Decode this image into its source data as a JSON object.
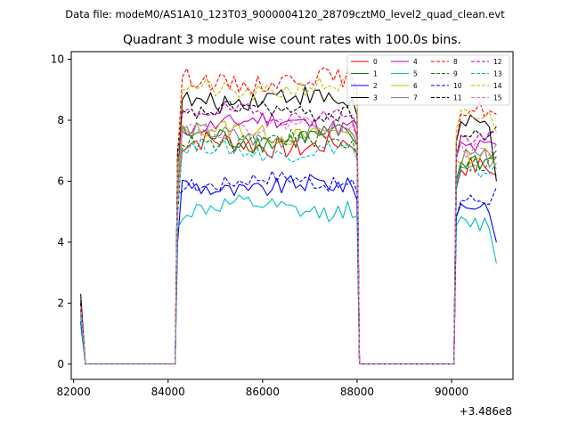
{
  "chart_data": {
    "type": "line",
    "suptitle": "Data file: modeM0/AS1A10_123T03_9000004120_28709cztM0_level2_quad_clean.evt",
    "title": "Quadrant 3 module wise count rates with 100.0s bins.",
    "xlabel": "",
    "ylabel": "",
    "x_offset_label": "+3.486e8",
    "xlim": [
      81950,
      91300
    ],
    "ylim": [
      -0.5,
      10.25
    ],
    "xticks": [
      82000,
      84000,
      86000,
      88000,
      90000
    ],
    "xtick_labels": [
      "82000",
      "84000",
      "86000",
      "88000",
      "90000"
    ],
    "yticks": [
      0,
      2,
      4,
      6,
      8,
      10
    ],
    "ytick_labels": [
      "0",
      "2",
      "4",
      "6",
      "8",
      "10"
    ],
    "legend_position": "top-right",
    "segments": [
      {
        "start": 82150,
        "end": 82250
      },
      {
        "start": 82250,
        "end": 84150
      },
      {
        "start": 84150,
        "end": 88050
      },
      {
        "start": 88050,
        "end": 90050
      },
      {
        "start": 90050,
        "end": 90950
      }
    ],
    "series": [
      {
        "name": "0",
        "color": "#ff0000",
        "dash": false,
        "start": 2.1,
        "level": 7.2,
        "noise": 0.35,
        "tail": 6.2
      },
      {
        "name": "1",
        "color": "#008000",
        "dash": false,
        "start": 1.9,
        "level": 7.4,
        "noise": 0.35,
        "tail": 7.0
      },
      {
        "name": "2",
        "color": "#0000ff",
        "dash": false,
        "start": 1.6,
        "level": 5.8,
        "noise": 0.3,
        "tail": 4.0
      },
      {
        "name": "3",
        "color": "#000000",
        "dash": false,
        "start": 2.3,
        "level": 8.7,
        "noise": 0.35,
        "tail": 6.0
      },
      {
        "name": "4",
        "color": "#bf00bf",
        "dash": false,
        "start": 1.8,
        "level": 7.9,
        "noise": 0.3,
        "tail": 7.2
      },
      {
        "name": "5",
        "color": "#00bfbf",
        "dash": false,
        "start": 1.3,
        "level": 5.1,
        "noise": 0.3,
        "tail": 3.3
      },
      {
        "name": "6",
        "color": "#bfbf00",
        "dash": false,
        "start": 1.9,
        "level": 7.6,
        "noise": 0.3,
        "tail": 6.4
      },
      {
        "name": "7",
        "color": "#808080",
        "dash": false,
        "start": 1.7,
        "level": 7.5,
        "noise": 0.3,
        "tail": 6.8
      },
      {
        "name": "8",
        "color": "#ff0000",
        "dash": true,
        "start": 2.0,
        "level": 9.3,
        "noise": 0.3,
        "tail": 8.2
      },
      {
        "name": "9",
        "color": "#008000",
        "dash": true,
        "start": 1.8,
        "level": 7.3,
        "noise": 0.3,
        "tail": 6.8
      },
      {
        "name": "10",
        "color": "#0000ff",
        "dash": true,
        "start": 1.4,
        "level": 6.0,
        "noise": 0.25,
        "tail": 5.8
      },
      {
        "name": "11",
        "color": "#000000",
        "dash": true,
        "start": 2.0,
        "level": 8.3,
        "noise": 0.25,
        "tail": 7.8
      },
      {
        "name": "12",
        "color": "#bf00bf",
        "dash": true,
        "start": 1.8,
        "level": 8.2,
        "noise": 0.25,
        "tail": 7.6
      },
      {
        "name": "13",
        "color": "#00bfbf",
        "dash": true,
        "start": 1.6,
        "level": 7.0,
        "noise": 0.25,
        "tail": 6.6
      },
      {
        "name": "14",
        "color": "#bfbf00",
        "dash": true,
        "start": 1.9,
        "level": 9.0,
        "noise": 0.3,
        "tail": 7.6
      },
      {
        "name": "15",
        "color": "#e377c2",
        "dash": true,
        "start": 1.9,
        "level": 7.8,
        "noise": 0.25,
        "tail": 7.2
      }
    ]
  }
}
